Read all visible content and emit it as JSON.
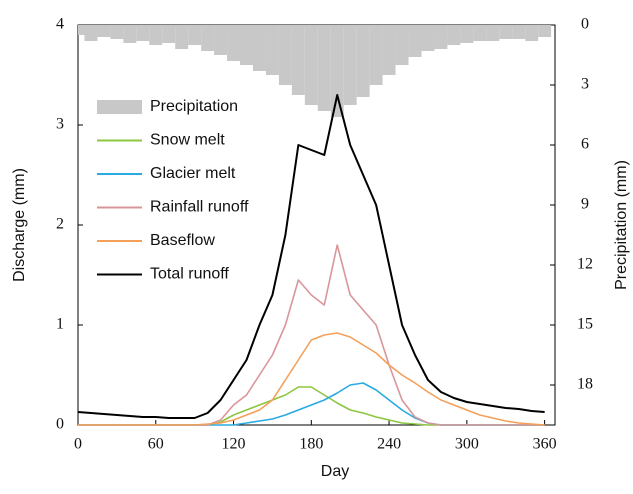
{
  "chart_data": {
    "type": "line",
    "xlabel": "Day",
    "ylabel": "Discharge (mm)",
    "y2label": "Precipitation (mm)",
    "x": [
      0,
      10,
      20,
      30,
      40,
      50,
      60,
      70,
      80,
      90,
      100,
      110,
      120,
      130,
      140,
      150,
      160,
      170,
      180,
      190,
      200,
      210,
      220,
      230,
      240,
      250,
      260,
      270,
      280,
      290,
      300,
      310,
      320,
      330,
      340,
      350,
      360
    ],
    "series": [
      {
        "name": "Precipitation",
        "type": "bar",
        "axis": "y2",
        "color": "#c8c8c8",
        "values": [
          0.5,
          0.8,
          0.6,
          0.7,
          0.9,
          0.8,
          1.0,
          0.9,
          1.2,
          1.0,
          1.3,
          1.5,
          1.8,
          2.0,
          2.3,
          2.5,
          3.0,
          3.5,
          4.0,
          4.3,
          4.6,
          4.0,
          3.6,
          3.0,
          2.5,
          2.0,
          1.6,
          1.3,
          1.2,
          1.0,
          0.9,
          0.8,
          0.8,
          0.7,
          0.7,
          0.8,
          0.6
        ]
      },
      {
        "name": "Snow melt",
        "type": "line",
        "color": "#8dc63f",
        "values": [
          0,
          0,
          0,
          0,
          0,
          0,
          0,
          0,
          0,
          0,
          0,
          0.03,
          0.1,
          0.15,
          0.2,
          0.25,
          0.3,
          0.38,
          0.38,
          0.3,
          0.22,
          0.15,
          0.12,
          0.08,
          0.05,
          0.02,
          0.01,
          0,
          0,
          0,
          0,
          0,
          0,
          0,
          0,
          0,
          0
        ]
      },
      {
        "name": "Glacier melt",
        "type": "line",
        "color": "#29abe2",
        "values": [
          0,
          0,
          0,
          0,
          0,
          0,
          0,
          0,
          0,
          0,
          0,
          0,
          0,
          0.02,
          0.04,
          0.06,
          0.1,
          0.15,
          0.2,
          0.25,
          0.32,
          0.4,
          0.42,
          0.35,
          0.25,
          0.15,
          0.07,
          0.02,
          0,
          0,
          0,
          0,
          0,
          0,
          0,
          0,
          0
        ]
      },
      {
        "name": "Rainfall runoff",
        "type": "line",
        "color": "#d9969a",
        "values": [
          0,
          0,
          0,
          0,
          0,
          0,
          0,
          0,
          0,
          0,
          0,
          0.05,
          0.2,
          0.3,
          0.5,
          0.7,
          1.0,
          1.45,
          1.3,
          1.2,
          1.8,
          1.3,
          1.15,
          1.0,
          0.6,
          0.25,
          0.08,
          0.02,
          0,
          0,
          0,
          0,
          0,
          0,
          0,
          0,
          0
        ]
      },
      {
        "name": "Baseflow",
        "type": "line",
        "color": "#f4a05a",
        "values": [
          0,
          0,
          0,
          0,
          0,
          0,
          0,
          0,
          0,
          0,
          0.01,
          0.02,
          0.05,
          0.1,
          0.15,
          0.25,
          0.45,
          0.65,
          0.85,
          0.9,
          0.92,
          0.88,
          0.8,
          0.72,
          0.6,
          0.5,
          0.42,
          0.33,
          0.25,
          0.2,
          0.15,
          0.1,
          0.07,
          0.04,
          0.02,
          0.01,
          0
        ]
      },
      {
        "name": "Total runoff",
        "type": "line",
        "color": "#000000",
        "values": [
          0.13,
          0.12,
          0.11,
          0.1,
          0.09,
          0.08,
          0.08,
          0.07,
          0.07,
          0.07,
          0.12,
          0.25,
          0.45,
          0.65,
          1.0,
          1.3,
          1.9,
          2.8,
          2.75,
          2.7,
          3.3,
          2.8,
          2.5,
          2.2,
          1.6,
          1.0,
          0.7,
          0.45,
          0.33,
          0.27,
          0.23,
          0.21,
          0.19,
          0.17,
          0.16,
          0.14,
          0.13
        ]
      }
    ],
    "xlim": [
      0,
      368
    ],
    "xticks": [
      0,
      60,
      120,
      180,
      240,
      300,
      360
    ],
    "ylim": [
      0,
      4
    ],
    "yticks": [
      0,
      1,
      2,
      3,
      4
    ],
    "y2lim": [
      0,
      20
    ],
    "y2ticks": [
      0,
      3,
      6,
      9,
      12,
      15,
      18
    ],
    "y2_inverted": true,
    "legend": "upper left"
  }
}
